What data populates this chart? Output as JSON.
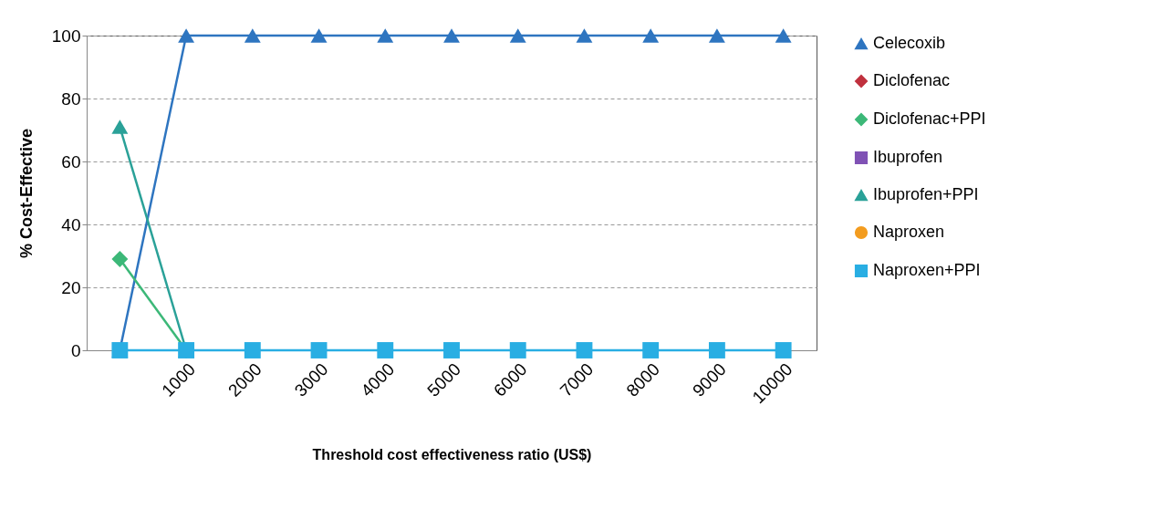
{
  "chart_data": {
    "type": "line",
    "xlabel": "Threshold cost effectiveness ratio (US$)",
    "ylabel": "% Cost-Effective",
    "categories": [
      null,
      "1000",
      "2000",
      "3000",
      "4000",
      "5000",
      "6000",
      "7000",
      "8000",
      "9000",
      "10000"
    ],
    "series": [
      {
        "name": "Celecoxib",
        "color": "#2e75c0",
        "marker": "triangle",
        "values": [
          0,
          100,
          100,
          100,
          100,
          100,
          100,
          100,
          100,
          100,
          100
        ]
      },
      {
        "name": "Diclofenac",
        "color": "#c0313e",
        "marker": "diamond",
        "values": [
          null,
          null,
          null,
          null,
          null,
          null,
          null,
          null,
          null,
          null,
          null
        ]
      },
      {
        "name": "Diclofenac+PPI",
        "color": "#3cb878",
        "marker": "diamond",
        "values": [
          29,
          0,
          null,
          null,
          null,
          null,
          null,
          null,
          null,
          null,
          null
        ]
      },
      {
        "name": "Ibuprofen",
        "color": "#8052b5",
        "marker": "square",
        "values": [
          null,
          null,
          null,
          null,
          null,
          null,
          null,
          null,
          null,
          null,
          null
        ]
      },
      {
        "name": "Ibuprofen+PPI",
        "color": "#2aa198",
        "marker": "triangle",
        "values": [
          71,
          0,
          null,
          null,
          null,
          null,
          null,
          null,
          null,
          null,
          null
        ]
      },
      {
        "name": "Naproxen",
        "color": "#f39c1f",
        "marker": "circle",
        "values": [
          null,
          null,
          null,
          null,
          null,
          null,
          null,
          null,
          null,
          null,
          null
        ]
      },
      {
        "name": "Naproxen+PPI",
        "color": "#29aee3",
        "marker": "square",
        "values": [
          0,
          0,
          0,
          0,
          0,
          0,
          0,
          0,
          0,
          0,
          0
        ]
      }
    ],
    "ylim": [
      0,
      100
    ],
    "yticks": [
      0,
      20,
      40,
      60,
      80,
      100
    ],
    "grid": "y",
    "legend": "right",
    "line_style": "solid"
  }
}
